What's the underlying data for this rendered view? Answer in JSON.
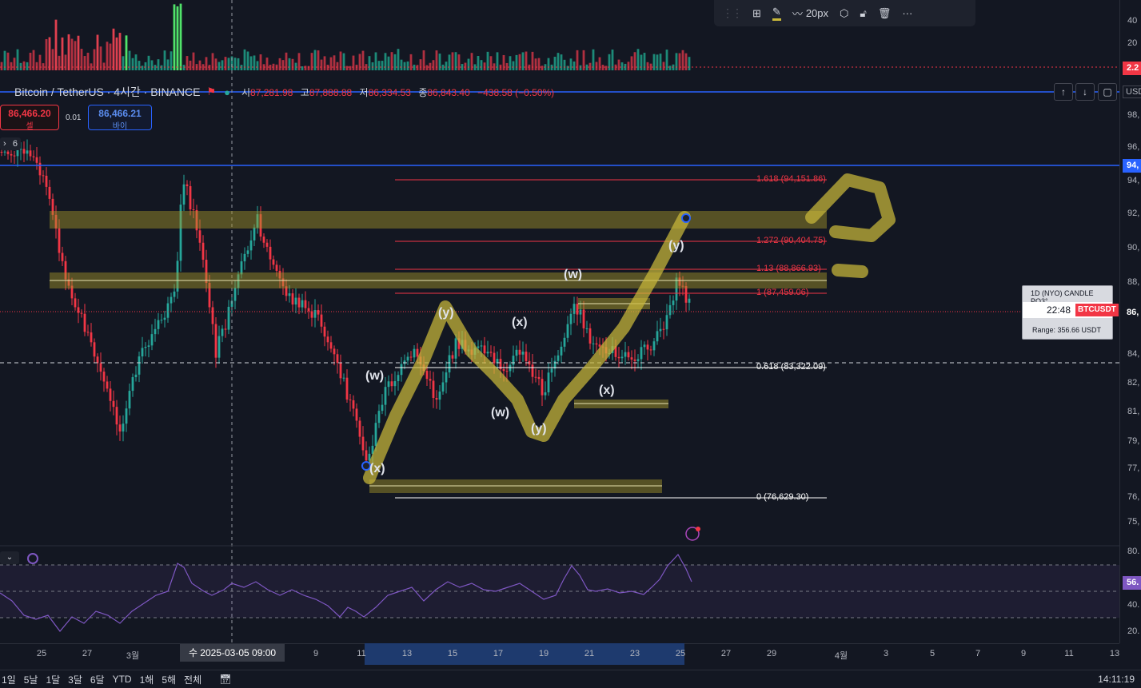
{
  "toolbar": {
    "grid_icon": "add-grid-icon",
    "pencil_icon": "pencil-icon",
    "brush_icon": "brush-icon",
    "width_label": "20px",
    "settings_icon": "settings-icon",
    "lock_icon": "lock-icon",
    "delete_icon": "trash-icon",
    "more_icon": "more-icon"
  },
  "symbol": {
    "name": "Bitcoin / TetherUS · 4시간 · BINANCE",
    "open_label": "시",
    "open": "87,281.98",
    "high_label": "고",
    "high": "87,888.88",
    "low_label": "저",
    "low": "86,334.53",
    "close_label": "종",
    "close": "86,843.40",
    "change": "−438.58 (−0.50%)"
  },
  "trade": {
    "sell_price": "86,466.20",
    "sell_label": "셀",
    "spread": "0.01",
    "buy_price": "86,466.21",
    "buy_label": "바이"
  },
  "pane_control": "6",
  "yaxis": {
    "currency": "USD",
    "ticks": [
      "98,",
      "96,",
      "94,",
      "92,",
      "90,",
      "88,",
      "86,",
      "84,",
      "82,",
      "81,",
      "79,",
      "77,",
      "76,",
      "75,"
    ],
    "volume_ticks": [
      "40",
      "20"
    ],
    "volume_tag": "2.2",
    "blue_tag": "94,",
    "price_tag": "86,",
    "rsi_ticks": [
      "80.",
      "40.",
      "20."
    ],
    "rsi_tag": "56."
  },
  "fib_levels": [
    {
      "label": "1.618 (94,151.86)",
      "color": "#f23645"
    },
    {
      "label": "1.272 (90,404.75)",
      "color": "#f23645"
    },
    {
      "label": "1.13 (88,866.93)",
      "color": "#f23645"
    },
    {
      "label": "1 (87,459.06)",
      "color": "#f23645"
    },
    {
      "label": "0.618 (83,322.09)",
      "color": "#ffffff"
    },
    {
      "label": "0 (76,629.30)",
      "color": "#ffffff"
    }
  ],
  "waves": [
    "(x)",
    "(w)",
    "(y)",
    "(x)",
    "(w)",
    "(y)",
    "(x)",
    "(w)",
    "(y)"
  ],
  "info_box": {
    "title": "1D (NYO) CANDLE PO3°",
    "timer": "22:48",
    "ticker": "BTCUSDT",
    "range": "Range: 356.66 USDT"
  },
  "xaxis": {
    "ticks": [
      "25",
      "27",
      "3월",
      "9",
      "11",
      "13",
      "15",
      "17",
      "19",
      "21",
      "23",
      "25",
      "27",
      "29",
      "4월",
      "3",
      "5",
      "7",
      "9",
      "11",
      "13"
    ],
    "crosshair": "수 2025-03-05   09:00"
  },
  "bottombar": {
    "ranges": [
      "1일",
      "5날",
      "1달",
      "3달",
      "6달",
      "YTD",
      "1해",
      "5해",
      "전체"
    ],
    "calendar_icon": "calendar-range-icon",
    "clock": "14:11:19"
  },
  "colors": {
    "background": "#131722",
    "up": "#26a69a",
    "down": "#f23645",
    "highlight": "#d4c44a",
    "blue_line": "#2962ff",
    "rsi": "#7e57c2"
  }
}
